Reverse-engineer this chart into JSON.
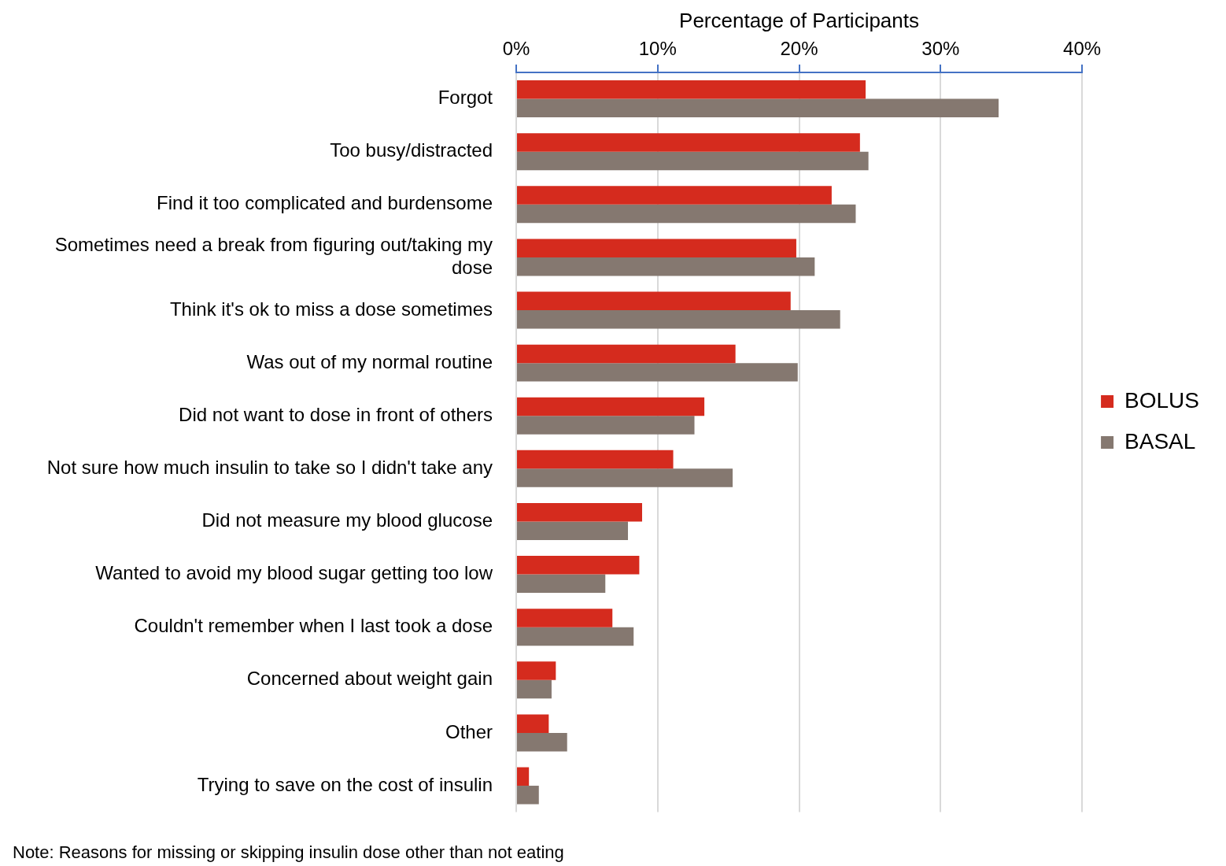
{
  "chart_data": {
    "type": "bar",
    "orientation": "horizontal",
    "xlabel": "Percentage of Participants",
    "categories": [
      "Forgot",
      "Too busy/distracted",
      "Find it too complicated and burdensome",
      "Sometimes need a break from figuring out/taking my dose",
      "Think it's ok to miss a dose sometimes",
      "Was out of my normal routine",
      "Did not want to dose in front of others",
      "Not sure how much insulin to take so I didn't take any",
      "Did not measure my blood glucose",
      "Wanted to avoid my blood sugar getting too low",
      "Couldn't remember when I last took a dose",
      "Concerned about weight gain",
      "Other",
      "Trying to save on the cost of insulin"
    ],
    "series": [
      {
        "name": "BOLUS",
        "color": "#d52b1e",
        "values": [
          24.7,
          24.3,
          22.3,
          19.8,
          19.4,
          15.5,
          13.3,
          11.1,
          8.9,
          8.7,
          6.8,
          2.8,
          2.3,
          0.9
        ]
      },
      {
        "name": "BASAL",
        "color": "#857870",
        "values": [
          34.1,
          24.9,
          24.0,
          21.1,
          22.9,
          19.9,
          12.6,
          15.3,
          7.9,
          6.3,
          8.3,
          2.5,
          3.6,
          1.6
        ]
      }
    ],
    "xlim": [
      0,
      40
    ],
    "xticks": [
      {
        "value": 0,
        "label": "0%"
      },
      {
        "value": 10,
        "label": "10%"
      },
      {
        "value": 20,
        "label": "20%"
      },
      {
        "value": 30,
        "label": "30%"
      },
      {
        "value": 40,
        "label": "40%"
      }
    ],
    "grid": "x",
    "legend": "right",
    "annotations": [
      "Note: Reasons for missing or skipping insulin dose other than not eating"
    ]
  }
}
